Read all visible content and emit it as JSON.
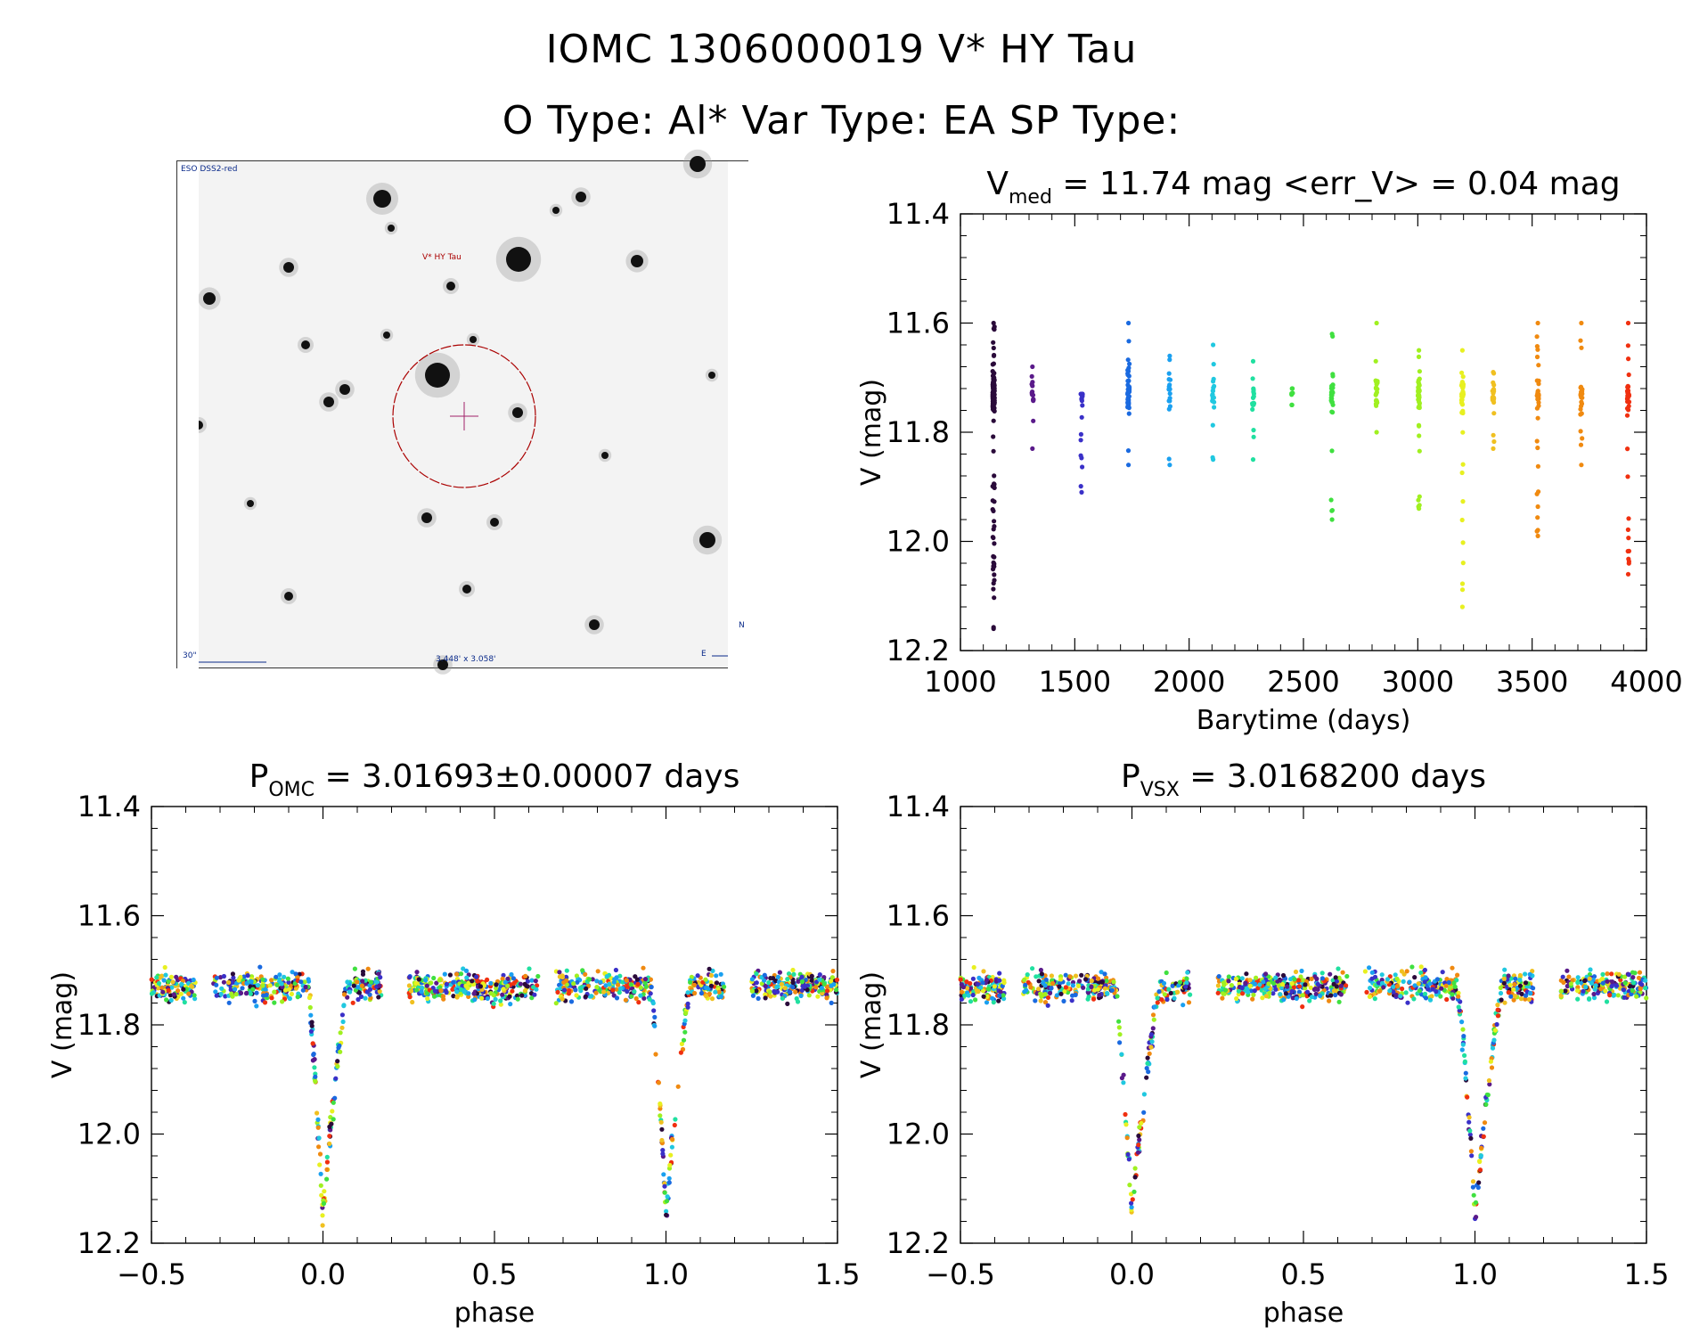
{
  "header": {
    "line1": "IOMC 1306000019   V* HY Tau",
    "line2": "O Type: Al*  Var Type: EA  SP Type:"
  },
  "finder": {
    "survey": "ESO DSS2-red",
    "target_label": "V* HY Tau",
    "scale_label": "30\"",
    "fov_label": "3.448' x 3.058'",
    "north": "N",
    "east": "E"
  },
  "colors": {
    "seasons": [
      "#2a0a3a",
      "#5a1a8a",
      "#3a30c8",
      "#1a6ae0",
      "#1aa0f0",
      "#20c8e0",
      "#20e0a0",
      "#40e040",
      "#a0f020",
      "#e8f020",
      "#f0c020",
      "#f08a10",
      "#f03010"
    ]
  },
  "chart_data": [
    {
      "id": "lightcurve",
      "type": "scatter",
      "title": "V_med = 11.74 mag <err_V> = 0.04 mag",
      "title_parts": {
        "main": "V",
        "sub": "med",
        "rest": " = 11.74 mag <err_V> = 0.04 mag"
      },
      "xlabel": "Barytime (days)",
      "ylabel": "V (mag)",
      "xlim": [
        1000,
        4000
      ],
      "ylim": [
        12.2,
        11.4
      ],
      "xticks": [
        1000,
        1500,
        2000,
        2500,
        3000,
        3500,
        4000
      ],
      "xtick_labels": [
        "1000",
        "1500",
        "2000",
        "2500",
        "3000",
        "3500",
        "4000"
      ],
      "yticks": [
        11.4,
        11.6,
        11.8,
        12.0,
        12.2
      ],
      "ytick_labels": [
        "11.4",
        "11.6",
        "11.8",
        "12.0",
        "12.2"
      ],
      "seasons": [
        {
          "t": 1145,
          "ymin": 11.6,
          "ymax": 12.16,
          "n": 160,
          "color": 0
        },
        {
          "t": 1315,
          "ymin": 11.68,
          "ymax": 11.83,
          "n": 14,
          "color": 1
        },
        {
          "t": 1530,
          "ymin": 11.73,
          "ymax": 11.91,
          "n": 20,
          "color": 2
        },
        {
          "t": 1735,
          "ymin": 11.6,
          "ymax": 11.86,
          "n": 40,
          "color": 3
        },
        {
          "t": 1915,
          "ymin": 11.66,
          "ymax": 11.86,
          "n": 16,
          "color": 4
        },
        {
          "t": 2105,
          "ymin": 11.64,
          "ymax": 11.85,
          "n": 18,
          "color": 5
        },
        {
          "t": 2280,
          "ymin": 11.67,
          "ymax": 11.85,
          "n": 16,
          "color": 6
        },
        {
          "t": 2450,
          "ymin": 11.72,
          "ymax": 11.75,
          "n": 5,
          "color": 7
        },
        {
          "t": 2625,
          "ymin": 11.62,
          "ymax": 11.96,
          "n": 28,
          "color": 7
        },
        {
          "t": 2820,
          "ymin": 11.6,
          "ymax": 11.8,
          "n": 20,
          "color": 8
        },
        {
          "t": 3005,
          "ymin": 11.65,
          "ymax": 11.94,
          "n": 40,
          "color": 8
        },
        {
          "t": 3195,
          "ymin": 11.65,
          "ymax": 12.12,
          "n": 40,
          "color": 9
        },
        {
          "t": 3330,
          "ymin": 11.69,
          "ymax": 11.83,
          "n": 22,
          "color": 10
        },
        {
          "t": 3525,
          "ymin": 11.6,
          "ymax": 11.99,
          "n": 36,
          "color": 11
        },
        {
          "t": 3715,
          "ymin": 11.6,
          "ymax": 11.86,
          "n": 22,
          "color": 11
        },
        {
          "t": 3920,
          "ymin": 11.6,
          "ymax": 12.06,
          "n": 40,
          "color": 12
        }
      ]
    },
    {
      "id": "phase_omc",
      "type": "scatter",
      "title": "P_OMC = 3.01693±0.00007 days",
      "title_parts": {
        "main": "P",
        "sub": "OMC",
        "rest": " = 3.01693±0.00007 days"
      },
      "xlabel": "phase",
      "ylabel": "V (mag)",
      "xlim": [
        -0.5,
        1.5
      ],
      "ylim": [
        12.2,
        11.4
      ],
      "xticks": [
        -0.5,
        0.0,
        0.5,
        1.0,
        1.5
      ],
      "xtick_labels": [
        "−0.5",
        "0.0",
        "0.5",
        "1.0",
        "1.5"
      ],
      "yticks": [
        11.4,
        11.6,
        11.8,
        12.0,
        12.2
      ],
      "ytick_labels": [
        "11.4",
        "11.6",
        "11.8",
        "12.0",
        "12.2"
      ],
      "baseline_mag": 11.73,
      "eclipse_depth_mag": 0.42,
      "eclipse_half_width_phase": 0.07,
      "gaps": [
        [
          0.17,
          0.25
        ],
        [
          -0.37,
          -0.32
        ]
      ]
    },
    {
      "id": "phase_vsx",
      "type": "scatter",
      "title": "P_VSX = 3.0168200 days",
      "title_parts": {
        "main": "P",
        "sub": "VSX",
        "rest": " = 3.0168200 days"
      },
      "xlabel": "phase",
      "ylabel": "V (mag)",
      "xlim": [
        -0.5,
        1.5
      ],
      "ylim": [
        12.2,
        11.4
      ],
      "xticks": [
        -0.5,
        0.0,
        0.5,
        1.0,
        1.5
      ],
      "xtick_labels": [
        "−0.5",
        "0.0",
        "0.5",
        "1.0",
        "1.5"
      ],
      "yticks": [
        11.4,
        11.6,
        11.8,
        12.0,
        12.2
      ],
      "ytick_labels": [
        "11.4",
        "11.6",
        "11.8",
        "12.0",
        "12.2"
      ],
      "baseline_mag": 11.73,
      "eclipse_depth_mag": 0.42,
      "eclipse_half_width_phase": 0.08,
      "gaps": [
        [
          0.17,
          0.25
        ],
        [
          -0.37,
          -0.32
        ]
      ]
    }
  ]
}
